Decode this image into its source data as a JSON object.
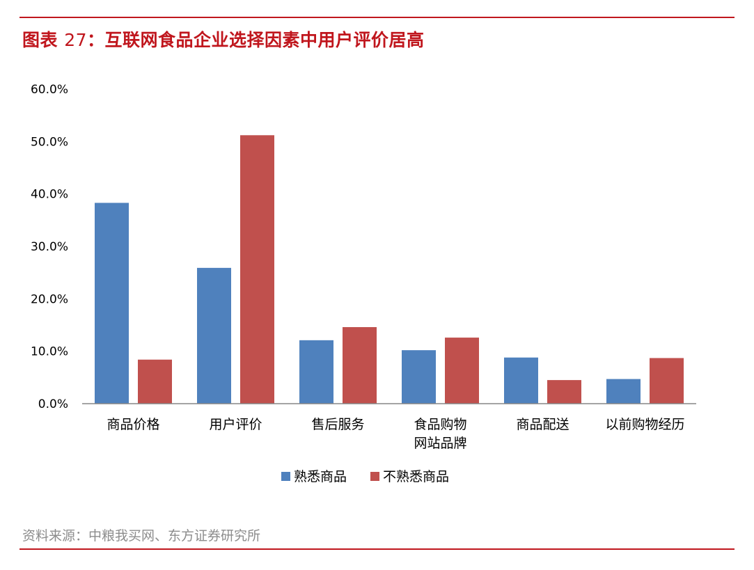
{
  "header": {
    "title_prefix": "图表 ",
    "title_number": "27",
    "title_text": "：互联网食品企业选择因素中用户评价居高"
  },
  "footer": {
    "source": "资料来源：中粮我买网、东方证券研究所"
  },
  "colors": {
    "accent": "#c0161d",
    "series_blue": "#4f81bd",
    "series_red": "#c0504d"
  },
  "chart_data": {
    "type": "bar",
    "categories": [
      [
        "商品价格"
      ],
      [
        "用户评价"
      ],
      [
        "售后服务"
      ],
      [
        "食品购物",
        "网站品牌"
      ],
      [
        "商品配送"
      ],
      [
        "以前购物经历"
      ]
    ],
    "series": [
      {
        "name": "熟悉商品",
        "values": [
          38.3,
          25.9,
          12.1,
          10.2,
          8.8,
          4.7
        ]
      },
      {
        "name": "不熟悉商品",
        "values": [
          8.4,
          51.2,
          14.6,
          12.6,
          4.5,
          8.7
        ]
      }
    ],
    "yticks": [
      "0.0%",
      "10.0%",
      "20.0%",
      "30.0%",
      "40.0%",
      "50.0%",
      "60.0%"
    ],
    "ylim": [
      0,
      60
    ],
    "grid": false,
    "legend": "bottom"
  }
}
